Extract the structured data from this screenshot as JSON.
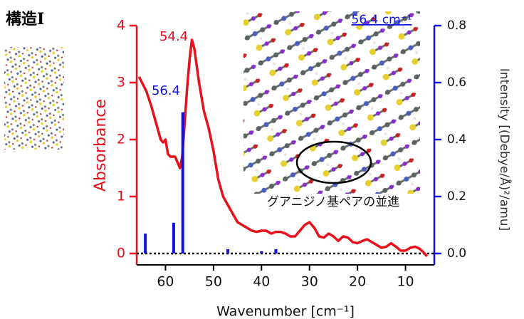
{
  "chart_data": {
    "type": "line",
    "title": "構造I",
    "x_label": "Wavenumber [cm⁻¹]",
    "y_label": "Absorbance",
    "y2_label": "Intensity [(Debye/Å)²/amu]",
    "xlim": [
      66,
      4
    ],
    "xticks": [
      60,
      50,
      40,
      30,
      20,
      10
    ],
    "ylim": [
      -0.2,
      4.0
    ],
    "yticks": [
      0,
      1,
      2,
      3,
      4
    ],
    "y2lim": [
      -0.04,
      0.8
    ],
    "y2ticks": [
      {
        "value": 0,
        "label": "0.0"
      },
      0.2,
      0.4,
      0.6,
      0.8
    ],
    "zero_line": true,
    "series": [
      {
        "type": "line",
        "color": "#e8101a",
        "x": [
          65.5,
          64,
          63,
          62,
          61,
          60.5,
          60,
          59.5,
          59,
          58,
          57.5,
          57,
          56.5,
          56,
          55.5,
          55,
          54.5,
          54,
          53,
          52,
          51,
          50,
          49,
          48,
          47,
          46,
          45,
          44,
          43,
          42,
          41,
          40,
          39,
          38,
          37,
          36,
          35,
          34,
          33,
          32,
          31,
          30,
          29,
          28,
          27,
          26,
          25,
          24,
          23,
          22,
          21,
          20,
          19,
          18,
          17,
          16,
          15,
          14,
          13,
          12,
          11,
          10,
          9,
          8,
          7,
          6,
          5.5
        ],
        "values": [
          3.1,
          2.85,
          2.6,
          2.3,
          2.0,
          1.95,
          2.0,
          1.75,
          1.7,
          1.7,
          1.6,
          1.5,
          1.7,
          2.3,
          2.9,
          3.4,
          3.75,
          3.6,
          3.0,
          2.5,
          2.2,
          1.8,
          1.3,
          1.0,
          0.85,
          0.7,
          0.55,
          0.5,
          0.45,
          0.4,
          0.38,
          0.4,
          0.4,
          0.35,
          0.38,
          0.38,
          0.35,
          0.3,
          0.3,
          0.4,
          0.5,
          0.55,
          0.45,
          0.3,
          0.28,
          0.35,
          0.3,
          0.22,
          0.3,
          0.28,
          0.2,
          0.18,
          0.22,
          0.25,
          0.2,
          0.15,
          0.1,
          0.12,
          0.18,
          0.12,
          0.05,
          0.05,
          0.1,
          0.12,
          0.08,
          0.0,
          -0.05
        ]
      },
      {
        "type": "bar",
        "axis": "y2",
        "color": "#1010e0",
        "x": [
          64.2,
          58.3,
          56.4,
          47.0,
          40.0,
          37.0
        ],
        "values": [
          0.07,
          0.108,
          0.496,
          0.015,
          0.008,
          0.015
        ]
      }
    ],
    "annotations": [
      {
        "text": "54.4",
        "color": "#e8101a"
      },
      {
        "text": "56.4",
        "color": "#1010e0"
      }
    ],
    "inset_label": "56.4 cm⁻¹",
    "inset_caption": "グアニジノ基ペアの並進"
  }
}
